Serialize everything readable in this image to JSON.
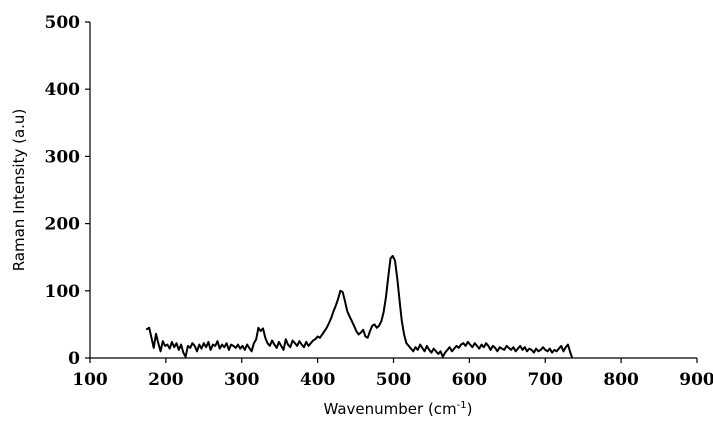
{
  "chart_data": {
    "type": "line",
    "title": "",
    "xlabel": "Wavenumber (cm",
    "xlabel_sup": "-1",
    "xlabel_close": ")",
    "ylabel": "Raman Intensity (a.u)",
    "xlim": [
      100,
      900
    ],
    "ylim": [
      0,
      500
    ],
    "x_ticks": [
      "100",
      "200",
      "300",
      "400",
      "500",
      "600",
      "700",
      "800",
      "900"
    ],
    "y_ticks": [
      "0",
      "100",
      "200",
      "300",
      "400",
      "500"
    ],
    "grid": false,
    "line_color": "#000000",
    "series": [
      {
        "x": [
          175,
          178,
          181,
          184,
          187,
          190,
          193,
          196,
          199,
          202,
          205,
          208,
          211,
          214,
          217,
          220,
          223,
          226,
          229,
          232,
          235,
          238,
          241,
          244,
          247,
          250,
          253,
          256,
          259,
          262,
          265,
          268,
          271,
          274,
          277,
          280,
          283,
          286,
          289,
          292,
          295,
          298,
          301,
          304,
          307,
          310,
          313,
          316,
          319,
          322,
          325,
          328,
          331,
          334,
          337,
          340,
          343,
          346,
          349,
          352,
          355,
          358,
          361,
          364,
          367,
          370,
          373,
          376,
          379,
          382,
          385,
          388,
          391,
          394,
          397,
          400,
          403,
          406,
          409,
          412,
          415,
          418,
          421,
          424,
          427,
          430,
          433,
          436,
          439,
          442,
          445,
          448,
          451,
          454,
          457,
          460,
          463,
          466,
          469,
          472,
          475,
          478,
          481,
          484,
          487,
          490,
          493,
          496,
          499,
          502,
          505,
          508,
          511,
          514,
          517,
          520,
          523,
          526,
          529,
          532,
          535,
          538,
          541,
          544,
          547,
          550,
          553,
          556,
          559,
          562,
          565,
          568,
          571,
          574,
          577,
          580,
          583,
          586,
          589,
          592,
          595,
          598,
          601,
          604,
          607,
          610,
          613,
          616,
          619,
          622,
          625,
          628,
          631,
          634,
          637,
          640,
          643,
          646,
          649,
          652,
          655,
          658,
          661,
          664,
          667,
          670,
          673,
          676,
          679,
          682,
          685,
          688,
          691,
          694,
          697,
          700,
          703,
          706,
          709,
          712,
          715,
          718,
          721,
          724,
          727,
          730,
          733,
          735
        ],
        "y": [
          43,
          45,
          30,
          15,
          36,
          22,
          10,
          25,
          18,
          20,
          14,
          24,
          16,
          22,
          12,
          20,
          8,
          2,
          18,
          15,
          22,
          18,
          10,
          20,
          14,
          22,
          16,
          24,
          12,
          20,
          18,
          25,
          14,
          20,
          16,
          22,
          12,
          20,
          18,
          15,
          20,
          14,
          18,
          12,
          20,
          15,
          10,
          22,
          28,
          45,
          40,
          44,
          30,
          22,
          18,
          26,
          20,
          15,
          24,
          18,
          12,
          28,
          20,
          16,
          26,
          22,
          18,
          25,
          20,
          16,
          24,
          18,
          22,
          26,
          28,
          32,
          30,
          35,
          40,
          45,
          52,
          60,
          70,
          78,
          88,
          100,
          98,
          85,
          70,
          62,
          55,
          48,
          40,
          35,
          38,
          42,
          32,
          30,
          40,
          48,
          50,
          45,
          48,
          55,
          68,
          90,
          120,
          148,
          152,
          145,
          118,
          85,
          55,
          35,
          22,
          18,
          14,
          10,
          16,
          12,
          20,
          15,
          10,
          18,
          12,
          8,
          14,
          10,
          6,
          10,
          2,
          8,
          12,
          16,
          10,
          14,
          18,
          15,
          20,
          22,
          18,
          24,
          20,
          16,
          22,
          18,
          14,
          20,
          16,
          22,
          18,
          12,
          18,
          15,
          10,
          16,
          14,
          12,
          18,
          15,
          12,
          16,
          10,
          14,
          18,
          12,
          16,
          10,
          14,
          12,
          8,
          14,
          10,
          12,
          16,
          12,
          10,
          14,
          8,
          12,
          10,
          14,
          18,
          10,
          16,
          20,
          8,
          2
        ]
      }
    ]
  }
}
